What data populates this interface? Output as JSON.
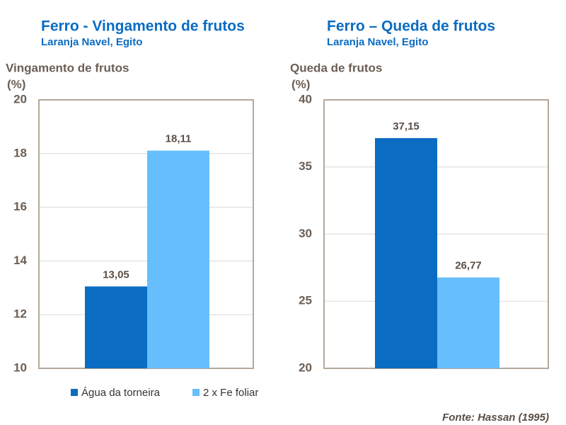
{
  "chart_data": [
    {
      "type": "bar",
      "title": "Ferro - Vingamento de frutos",
      "subtitle": "Laranja Navel, Egito",
      "y_label": [
        "Vingamento de frutos",
        "(%)"
      ],
      "series": [
        {
          "name": "Água da torneira",
          "color": "#0a6cc2",
          "values": [
            13.05
          ],
          "value_labels": [
            "13,05"
          ]
        },
        {
          "name": "2 x Fe foliar",
          "color": "#66bffc",
          "values": [
            18.11
          ],
          "value_labels": [
            "18,11"
          ]
        }
      ],
      "ylim": [
        10,
        20
      ],
      "yticks": [
        10,
        12,
        14,
        16,
        18,
        20
      ],
      "grid": true
    },
    {
      "type": "bar",
      "title": "Ferro – Queda de frutos",
      "subtitle": "Laranja Navel, Egito",
      "y_label": [
        "Queda de frutos",
        "(%)"
      ],
      "series": [
        {
          "color": "#0a6cc2",
          "values": [
            37.15
          ],
          "value_labels": [
            "37,15"
          ]
        },
        {
          "color": "#66bffc",
          "values": [
            26.77
          ],
          "value_labels": [
            "26,77"
          ]
        }
      ],
      "ylim": [
        20,
        40
      ],
      "yticks": [
        20,
        25,
        30,
        35,
        40
      ],
      "grid": true
    }
  ],
  "source": "Fonte: Hassan (1995)"
}
